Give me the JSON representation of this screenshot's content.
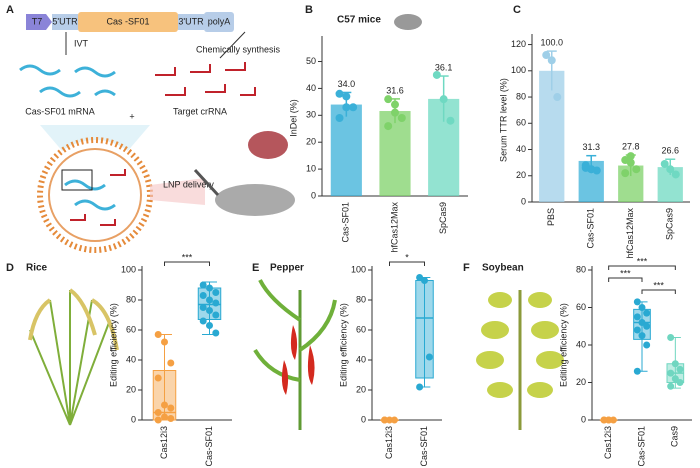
{
  "panels": [
    "A",
    "B",
    "C",
    "D",
    "E",
    "F"
  ],
  "diagram": {
    "construct": [
      "T7",
      "5'UTR",
      "Cas -SF01",
      "3'UTR",
      "polyA"
    ],
    "ivt": "IVT",
    "chem": "Chemically synthesis",
    "mrna": "Cas-SF01 mRNA",
    "plus": "+",
    "crrna": "Target crRNA",
    "lnp": "LNP delivery"
  },
  "chart_data": [
    {
      "type": "bar",
      "title": "C57 mice",
      "ylabel": "InDel (%)",
      "categories": [
        "Cas-SF01",
        "hfCas12Max",
        "SpCas9"
      ],
      "colors": [
        "#3ab0d8",
        "#7fd26a",
        "#6fd9c2"
      ],
      "values": [
        34.0,
        31.6,
        36.1
      ],
      "value_labels": [
        "34.0",
        "31.6",
        "36.1"
      ],
      "errors": [
        4.5,
        4.5,
        8.5
      ],
      "points": [
        [
          38,
          37,
          33,
          29,
          33
        ],
        [
          36,
          31,
          29,
          26,
          34
        ],
        [
          45,
          36,
          28
        ]
      ],
      "ylim": [
        0,
        58
      ],
      "yticks": [
        0,
        10,
        20,
        30,
        40,
        50
      ]
    },
    {
      "type": "bar",
      "ylabel": "Serum TTR level (%)",
      "categories": [
        "PBS",
        "Cas-SF01",
        "hfCas12Max",
        "SpCas9"
      ],
      "colors": [
        "#9fcfe8",
        "#3ab0d8",
        "#7fd26a",
        "#6fd9c2"
      ],
      "values": [
        100.0,
        31.3,
        27.8,
        26.6
      ],
      "value_labels": [
        "100.0",
        "31.3",
        "27.8",
        "26.6"
      ],
      "errors": [
        15,
        4,
        8,
        6
      ],
      "points": [
        [
          112,
          108,
          80
        ],
        [
          28,
          25,
          24,
          26,
          25
        ],
        [
          32,
          30,
          25,
          22,
          35
        ],
        [
          29,
          25,
          21
        ]
      ],
      "ylim": [
        0,
        125
      ],
      "yticks": [
        0,
        20,
        40,
        60,
        80,
        100,
        120
      ]
    },
    {
      "type": "box",
      "title": "Rice",
      "ylabel": "Editing efficiency (%)",
      "significance": [
        "***"
      ],
      "series": [
        {
          "name": "Cas12i3",
          "color": "#f5a043",
          "min": 0,
          "q1": 0,
          "median": 5,
          "q3": 33,
          "max": 57,
          "points": [
            57,
            52,
            38,
            28,
            10,
            8,
            5,
            2,
            1,
            0
          ]
        },
        {
          "name": "Cas-SF01",
          "color": "#29a9d2",
          "min": 57,
          "q1": 67,
          "median": 77,
          "q3": 88,
          "max": 92,
          "points": [
            90,
            88,
            85,
            83,
            80,
            78,
            75,
            73,
            70,
            66,
            63,
            58
          ]
        }
      ],
      "ylim": [
        0,
        100
      ],
      "yticks": [
        0,
        20,
        40,
        60,
        80,
        100
      ]
    },
    {
      "type": "box",
      "title": "Pepper",
      "ylabel": "Editing efficiency (%)",
      "significance": [
        "*"
      ],
      "series": [
        {
          "name": "Cas12i3",
          "color": "#f5a043",
          "min": 0,
          "q1": 0,
          "median": 0,
          "q3": 0,
          "max": 0,
          "points": [
            0,
            0,
            0,
            0
          ]
        },
        {
          "name": "Cas-SF01",
          "color": "#29a9d2",
          "min": 22,
          "q1": 28,
          "median": 68,
          "q3": 93,
          "max": 95,
          "points": [
            95,
            93,
            42,
            22
          ]
        }
      ],
      "ylim": [
        0,
        100
      ],
      "yticks": [
        0,
        20,
        40,
        60,
        80,
        100
      ]
    },
    {
      "type": "box",
      "title": "Soybean",
      "ylabel": "Editing efficiency (%)",
      "significance": [
        "***",
        "***",
        "***"
      ],
      "series": [
        {
          "name": "Cas12i3",
          "color": "#f5a043",
          "min": 0,
          "q1": 0,
          "median": 0,
          "q3": 0,
          "max": 0,
          "points": [
            0,
            0,
            0,
            0,
            0
          ]
        },
        {
          "name": "Cas-SF01",
          "color": "#29a9d2",
          "min": 26,
          "q1": 43,
          "median": 52,
          "q3": 59,
          "max": 63,
          "points": [
            63,
            60,
            57,
            55,
            52,
            50,
            48,
            45,
            40,
            26
          ]
        },
        {
          "name": "Cas9",
          "color": "#6fd6c0",
          "min": 17,
          "q1": 20,
          "median": 25,
          "q3": 30,
          "max": 44,
          "points": [
            44,
            30,
            27,
            25,
            22,
            20,
            18
          ]
        }
      ],
      "ylim": [
        0,
        80
      ],
      "yticks": [
        0,
        20,
        40,
        60,
        80
      ]
    }
  ]
}
